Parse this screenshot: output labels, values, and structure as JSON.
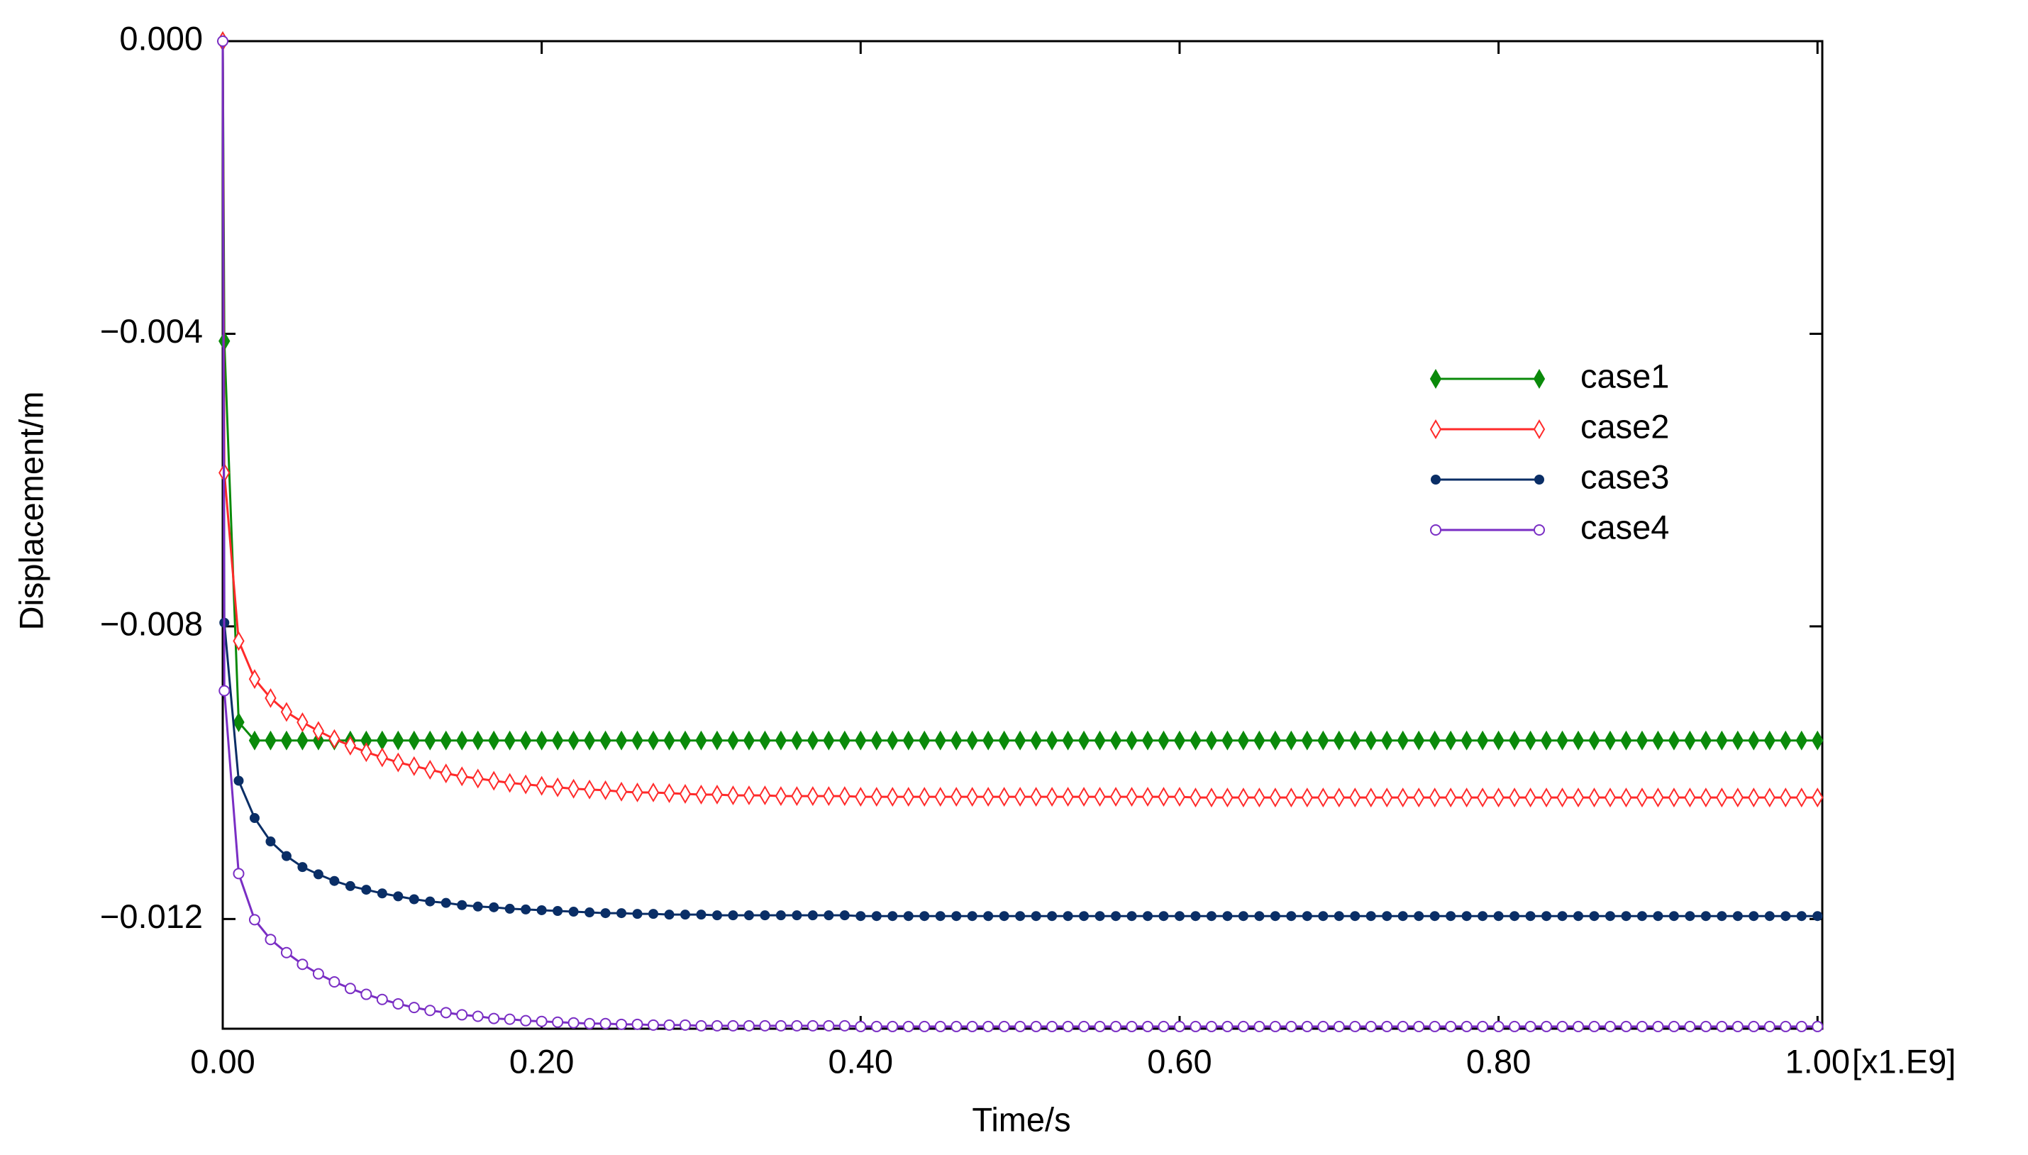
{
  "chart_data": {
    "type": "line",
    "xlabel": "Time/s",
    "ylabel": "Displacement/m",
    "x_multiplier": "[x1.E9]",
    "xlim": [
      0,
      1.003
    ],
    "ylim": [
      -0.0135,
      0
    ],
    "xticks": [
      {
        "value": 0,
        "label": "0.00"
      },
      {
        "value": 0.2,
        "label": "0.20"
      },
      {
        "value": 0.4,
        "label": "0.40"
      },
      {
        "value": 0.6,
        "label": "0.60"
      },
      {
        "value": 0.8,
        "label": "0.80"
      },
      {
        "value": 1,
        "label": "1.00"
      }
    ],
    "yticks": [
      {
        "value": 0,
        "label": "0.000"
      },
      {
        "value": -0.004,
        "label": "−0.004"
      },
      {
        "value": -0.008,
        "label": "−0.008"
      },
      {
        "value": -0.012,
        "label": "−0.012"
      }
    ],
    "legend": "upper right",
    "x": [
      0,
      0.001,
      0.01,
      0.02,
      0.03,
      0.04,
      0.05,
      0.06,
      0.07,
      0.08,
      0.09,
      0.1,
      0.11,
      0.12,
      0.13,
      0.14,
      0.15,
      0.16,
      0.17,
      0.18,
      0.19,
      0.2,
      0.21,
      0.22,
      0.23,
      0.24,
      0.25,
      0.26,
      0.27,
      0.28,
      0.29,
      0.3,
      0.31,
      0.32,
      0.33,
      0.34,
      0.35,
      0.36,
      0.37,
      0.38,
      0.39,
      0.4,
      0.41,
      0.42,
      0.43,
      0.44,
      0.45,
      0.46,
      0.47,
      0.48,
      0.49,
      0.5,
      0.51,
      0.52,
      0.53,
      0.54,
      0.55,
      0.56,
      0.57,
      0.58,
      0.59,
      0.6,
      0.61,
      0.62,
      0.63,
      0.64,
      0.65,
      0.66,
      0.67,
      0.68,
      0.69,
      0.7,
      0.71,
      0.72,
      0.73,
      0.74,
      0.75,
      0.76,
      0.77,
      0.78,
      0.79,
      0.8,
      0.81,
      0.82,
      0.83,
      0.84,
      0.85,
      0.86,
      0.87,
      0.88,
      0.89,
      0.9,
      0.91,
      0.92,
      0.93,
      0.94,
      0.95,
      0.96,
      0.97,
      0.98,
      0.99,
      1
    ],
    "series": [
      {
        "name": "case1",
        "color": "#0a8a0a",
        "marker": "diamond",
        "filled": true,
        "values": [
          0,
          -0.0041,
          -0.00931,
          -0.00956,
          -0.00956,
          -0.00956,
          -0.00956,
          -0.00956,
          -0.00956,
          -0.00956,
          -0.00956,
          -0.00956,
          -0.00956,
          -0.00956,
          -0.00956,
          -0.00956,
          -0.00956,
          -0.00956,
          -0.00956,
          -0.00956,
          -0.00956,
          -0.00956,
          -0.00956,
          -0.00956,
          -0.00956,
          -0.00956,
          -0.00956,
          -0.00956,
          -0.00956,
          -0.00956,
          -0.00956,
          -0.00956,
          -0.00956,
          -0.00956,
          -0.00956,
          -0.00956,
          -0.00956,
          -0.00956,
          -0.00956,
          -0.00956,
          -0.00956,
          -0.00956,
          -0.00956,
          -0.00956,
          -0.00956,
          -0.00956,
          -0.00956,
          -0.00956,
          -0.00956,
          -0.00956,
          -0.00956,
          -0.00956,
          -0.00956,
          -0.00956,
          -0.00956,
          -0.00956,
          -0.00956,
          -0.00956,
          -0.00956,
          -0.00956,
          -0.00956,
          -0.00956,
          -0.00956,
          -0.00956,
          -0.00956,
          -0.00956,
          -0.00956,
          -0.00956,
          -0.00956,
          -0.00956,
          -0.00956,
          -0.00956,
          -0.00956,
          -0.00956,
          -0.00956,
          -0.00956,
          -0.00956,
          -0.00956,
          -0.00956,
          -0.00956,
          -0.00956,
          -0.00956,
          -0.00956,
          -0.00956,
          -0.00956,
          -0.00956,
          -0.00956,
          -0.00956,
          -0.00956,
          -0.00956,
          -0.00956,
          -0.00956,
          -0.00956,
          -0.00956,
          -0.00956,
          -0.00956,
          -0.00956,
          -0.00956,
          -0.00956,
          -0.00956,
          -0.00956,
          -0.00956
        ]
      },
      {
        "name": "case2",
        "color": "#ff2a2a",
        "marker": "diamond",
        "filled": false,
        "values": [
          0,
          -0.0059,
          -0.0082,
          -0.00872,
          -0.00898,
          -0.00917,
          -0.00931,
          -0.00943,
          -0.00954,
          -0.00963,
          -0.00972,
          -0.00979,
          -0.00986,
          -0.00991,
          -0.00996,
          -0.01001,
          -0.01005,
          -0.01008,
          -0.01011,
          -0.01014,
          -0.01016,
          -0.01018,
          -0.0102,
          -0.01022,
          -0.01023,
          -0.01024,
          -0.01026,
          -0.01027,
          -0.01027,
          -0.01028,
          -0.01029,
          -0.0103,
          -0.0103,
          -0.01031,
          -0.01031,
          -0.01031,
          -0.01032,
          -0.01032,
          -0.01032,
          -0.01032,
          -0.01032,
          -0.01033,
          -0.01033,
          -0.01033,
          -0.01033,
          -0.01033,
          -0.01033,
          -0.01033,
          -0.01033,
          -0.01033,
          -0.01033,
          -0.01033,
          -0.01033,
          -0.01033,
          -0.01033,
          -0.01033,
          -0.01033,
          -0.01033,
          -0.01033,
          -0.01033,
          -0.01033,
          -0.01033,
          -0.01034,
          -0.01034,
          -0.01034,
          -0.01034,
          -0.01034,
          -0.01034,
          -0.01034,
          -0.01034,
          -0.01034,
          -0.01034,
          -0.01034,
          -0.01034,
          -0.01034,
          -0.01034,
          -0.01034,
          -0.01034,
          -0.01034,
          -0.01034,
          -0.01034,
          -0.01034,
          -0.01034,
          -0.01034,
          -0.01034,
          -0.01034,
          -0.01034,
          -0.01034,
          -0.01034,
          -0.01034,
          -0.01034,
          -0.01034,
          -0.01034,
          -0.01034,
          -0.01034,
          -0.01034,
          -0.01034,
          -0.01034,
          -0.01034,
          -0.01034,
          -0.01034,
          -0.01034
        ]
      },
      {
        "name": "case3",
        "color": "#0a2e66",
        "marker": "circle",
        "filled": true,
        "values": [
          0,
          -0.00795,
          -0.01011,
          -0.01062,
          -0.01094,
          -0.01114,
          -0.01129,
          -0.01139,
          -0.01148,
          -0.01155,
          -0.0116,
          -0.01165,
          -0.01169,
          -0.01173,
          -0.01176,
          -0.01178,
          -0.01181,
          -0.01183,
          -0.01184,
          -0.01186,
          -0.01187,
          -0.01188,
          -0.01189,
          -0.0119,
          -0.01191,
          -0.01192,
          -0.01192,
          -0.01193,
          -0.01193,
          -0.01194,
          -0.01194,
          -0.01194,
          -0.01195,
          -0.01195,
          -0.01195,
          -0.01195,
          -0.01195,
          -0.01195,
          -0.01195,
          -0.01195,
          -0.01195,
          -0.01196,
          -0.01196,
          -0.01196,
          -0.01196,
          -0.01196,
          -0.01196,
          -0.01196,
          -0.01196,
          -0.01196,
          -0.01196,
          -0.01196,
          -0.01196,
          -0.01196,
          -0.01196,
          -0.01196,
          -0.01196,
          -0.01196,
          -0.01196,
          -0.01196,
          -0.01196,
          -0.01196,
          -0.01196,
          -0.01196,
          -0.01196,
          -0.01196,
          -0.01196,
          -0.01196,
          -0.01196,
          -0.01196,
          -0.01196,
          -0.01196,
          -0.01196,
          -0.01196,
          -0.01196,
          -0.01196,
          -0.01196,
          -0.01196,
          -0.01196,
          -0.01196,
          -0.01196,
          -0.01196,
          -0.01196,
          -0.01196,
          -0.01196,
          -0.01196,
          -0.01196,
          -0.01196,
          -0.01196,
          -0.01196,
          -0.01196,
          -0.01196,
          -0.01196,
          -0.01196,
          -0.01196,
          -0.01196,
          -0.01196,
          -0.01196,
          -0.01196,
          -0.01196,
          -0.01196,
          -0.01196
        ]
      },
      {
        "name": "case4",
        "color": "#7a2ec4",
        "marker": "circle",
        "filled": false,
        "values": [
          0,
          -0.00888,
          -0.01138,
          -0.01201,
          -0.01228,
          -0.01246,
          -0.01262,
          -0.01275,
          -0.01286,
          -0.01295,
          -0.01303,
          -0.0131,
          -0.01316,
          -0.01321,
          -0.01325,
          -0.01328,
          -0.01331,
          -0.01333,
          -0.01336,
          -0.01337,
          -0.01339,
          -0.0134,
          -0.01341,
          -0.01342,
          -0.01343,
          -0.01343,
          -0.01344,
          -0.01344,
          -0.01345,
          -0.01345,
          -0.01345,
          -0.01346,
          -0.01346,
          -0.01346,
          -0.01346,
          -0.01346,
          -0.01346,
          -0.01346,
          -0.01346,
          -0.01346,
          -0.01346,
          -0.01347,
          -0.01347,
          -0.01347,
          -0.01347,
          -0.01347,
          -0.01347,
          -0.01347,
          -0.01347,
          -0.01347,
          -0.01347,
          -0.01347,
          -0.01347,
          -0.01347,
          -0.01347,
          -0.01347,
          -0.01347,
          -0.01347,
          -0.01347,
          -0.01347,
          -0.01347,
          -0.01347,
          -0.01347,
          -0.01347,
          -0.01347,
          -0.01347,
          -0.01347,
          -0.01347,
          -0.01347,
          -0.01347,
          -0.01347,
          -0.01347,
          -0.01347,
          -0.01347,
          -0.01347,
          -0.01347,
          -0.01347,
          -0.01347,
          -0.01347,
          -0.01347,
          -0.01347,
          -0.01347,
          -0.01347,
          -0.01347,
          -0.01347,
          -0.01347,
          -0.01347,
          -0.01347,
          -0.01347,
          -0.01347,
          -0.01347,
          -0.01347,
          -0.01347,
          -0.01347,
          -0.01347,
          -0.01347,
          -0.01347,
          -0.01347,
          -0.01347,
          -0.01347,
          -0.01347,
          -0.01347
        ]
      }
    ]
  }
}
